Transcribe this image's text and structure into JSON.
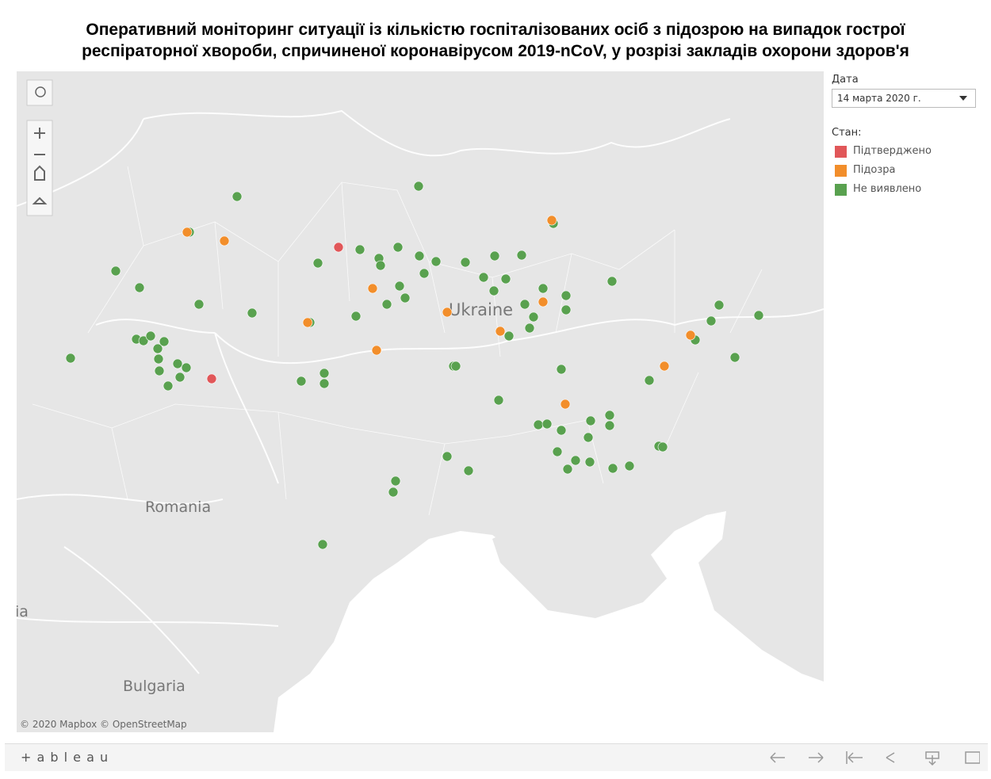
{
  "title": "Оперативний моніторинг ситуації із кількістю госпіталізованих осіб з підозрою на випадок гострої респіраторної хвороби, спричиненої коронавірусом 2019-nCoV, у розрізі закладів охорони здоров'я",
  "filter": {
    "label": "Дата",
    "value": "14 марта 2020 г."
  },
  "legend": {
    "title": "Стан:",
    "items": [
      {
        "name": "Підтверджено",
        "color": "#e15759"
      },
      {
        "name": "Підозра",
        "color": "#f28e2b"
      },
      {
        "name": "Не виявлено",
        "color": "#59a14f"
      }
    ]
  },
  "map_labels": [
    "Ukraine",
    "Romania",
    "Bulgaria",
    "ia"
  ],
  "attribution": "© 2020 Mapbox © OpenStreetMap",
  "footer": {
    "logo": "+ a b l e a u"
  }
}
